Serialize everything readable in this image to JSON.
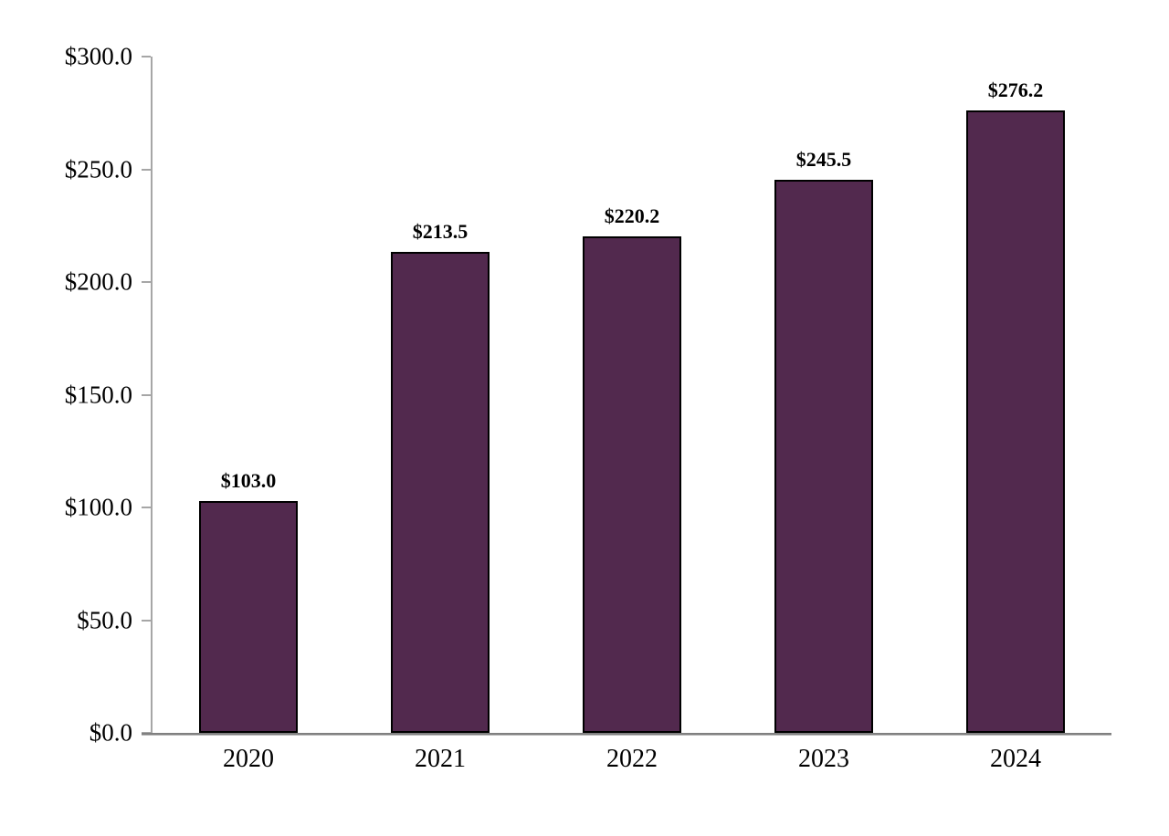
{
  "chart_data": {
    "type": "bar",
    "title": "",
    "xlabel": "",
    "ylabel": "",
    "categories": [
      "2020",
      "2021",
      "2022",
      "2023",
      "2024"
    ],
    "values": [
      103.0,
      213.5,
      220.2,
      245.5,
      276.2
    ],
    "data_labels": [
      "$103.0",
      "$213.5",
      "$220.2",
      "$245.5",
      "$276.2"
    ],
    "ylim": [
      0,
      300
    ],
    "ytick_step": 50,
    "ytick_labels": [
      "$0.0",
      "$50.0",
      "$100.0",
      "$150.0",
      "$200.0",
      "$250.0",
      "$300.0"
    ],
    "grid": false,
    "legend": null,
    "colors": {
      "bar_fill": "#52294e",
      "bar_border": "#000000",
      "axis_line": "#a6a6a6",
      "baseline_dark": "#808080",
      "baseline_light": "#b5b5b5",
      "label_text": "#000000"
    }
  }
}
